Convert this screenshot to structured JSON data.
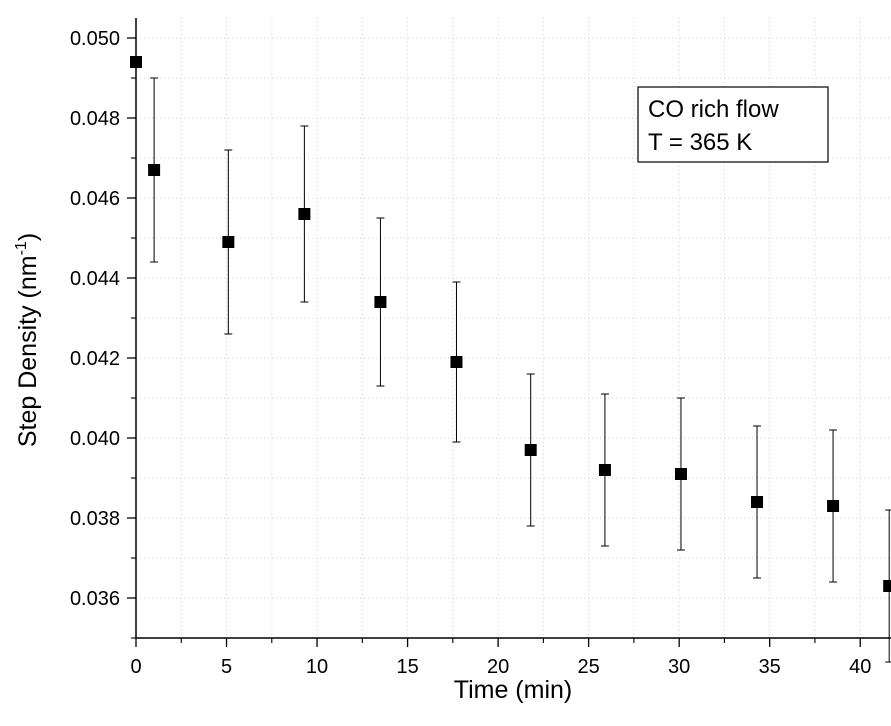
{
  "chart_data": {
    "type": "scatter",
    "xlabel": "Time (min)",
    "ylabel": {
      "base": "Step Density (nm",
      "sup": "-1",
      "end": ")"
    },
    "xlim": [
      0,
      41.7
    ],
    "ylim": [
      0.035,
      0.0505
    ],
    "xticks": [
      "0",
      "5",
      "10",
      "15",
      "20",
      "25",
      "30",
      "35",
      "40"
    ],
    "yticks": [
      "0.036",
      "0.038",
      "0.040",
      "0.042",
      "0.044",
      "0.046",
      "0.048",
      "0.050"
    ],
    "grid": true,
    "legend": {
      "lines": [
        "CO rich flow",
        "T = 365 K"
      ],
      "position": "top-right"
    },
    "series": [
      {
        "points": [
          {
            "x": 0.0,
            "y": 0.0494,
            "err": null
          },
          {
            "x": 1.0,
            "y": 0.0467,
            "err": 0.0023
          },
          {
            "x": 5.1,
            "y": 0.0449,
            "err": 0.0023
          },
          {
            "x": 9.3,
            "y": 0.0456,
            "err": 0.0022
          },
          {
            "x": 13.5,
            "y": 0.0434,
            "err": 0.0021
          },
          {
            "x": 17.7,
            "y": 0.0419,
            "err": 0.002
          },
          {
            "x": 21.8,
            "y": 0.0397,
            "err": 0.0019
          },
          {
            "x": 25.9,
            "y": 0.0392,
            "err": 0.0019
          },
          {
            "x": 30.1,
            "y": 0.0391,
            "err": 0.0019
          },
          {
            "x": 34.3,
            "y": 0.0384,
            "err": 0.0019
          },
          {
            "x": 38.5,
            "y": 0.0383,
            "err": 0.0019
          },
          {
            "x": 41.6,
            "y": 0.0363,
            "err": 0.0019
          }
        ]
      }
    ]
  }
}
